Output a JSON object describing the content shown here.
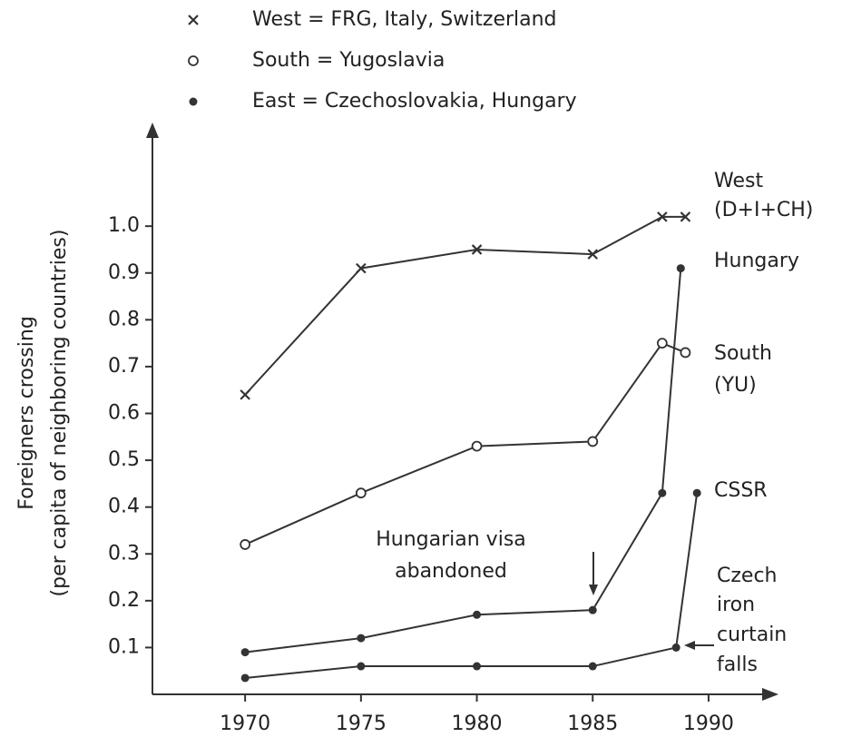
{
  "chart_data": {
    "type": "line",
    "ylabel": [
      "Foreigners crossing",
      "(per capita of neighboring countries)"
    ],
    "legend": [
      {
        "marker": "x",
        "name": "West = FRG, Italy, Switzerland"
      },
      {
        "marker": "o",
        "name": "South = Yugoslavia"
      },
      {
        "marker": "dot",
        "name": "East = Czechoslovakia, Hungary"
      }
    ],
    "series": [
      {
        "label": [
          "West",
          "(D+I+CH)"
        ],
        "marker": "x",
        "color": "#333",
        "x": [
          1970,
          1975,
          1980,
          1985,
          1988,
          1989
        ],
        "values": [
          0.64,
          0.91,
          0.95,
          0.94,
          1.02,
          1.02
        ]
      },
      {
        "label": [
          "Hungary"
        ],
        "marker": "dot",
        "color": "#333",
        "x": [
          1970,
          1975,
          1980,
          1985,
          1988,
          1988.8
        ],
        "values": [
          0.09,
          0.12,
          0.17,
          0.18,
          0.43,
          0.91
        ]
      },
      {
        "label": [
          "South",
          "(YU)"
        ],
        "marker": "o",
        "color": "#333",
        "x": [
          1970,
          1975,
          1980,
          1985,
          1988,
          1989
        ],
        "values": [
          0.32,
          0.43,
          0.53,
          0.54,
          0.75,
          0.73
        ]
      },
      {
        "label": [
          "CSSR"
        ],
        "marker": "dot",
        "color": "#333",
        "x": [
          1970,
          1975,
          1980,
          1985,
          1988.6,
          1989.5
        ],
        "values": [
          0.035,
          0.06,
          0.06,
          0.06,
          0.1,
          0.43
        ]
      }
    ],
    "annotations": [
      {
        "lines": [
          "Hungarian visa",
          "abandoned"
        ]
      },
      {
        "lines": [
          "Czech",
          "iron",
          "curtain",
          "falls"
        ]
      }
    ],
    "xlim": [
      1966,
      1992.9
    ],
    "xticks": [
      1970,
      1975,
      1980,
      1985,
      1990
    ],
    "ylim": [
      0,
      1.2
    ],
    "yticks": [
      0.1,
      0.2,
      0.3,
      0.4,
      0.5,
      0.6,
      0.7,
      0.8,
      0.9,
      {
        "value": 1.0,
        "label": "1.0"
      }
    ]
  }
}
